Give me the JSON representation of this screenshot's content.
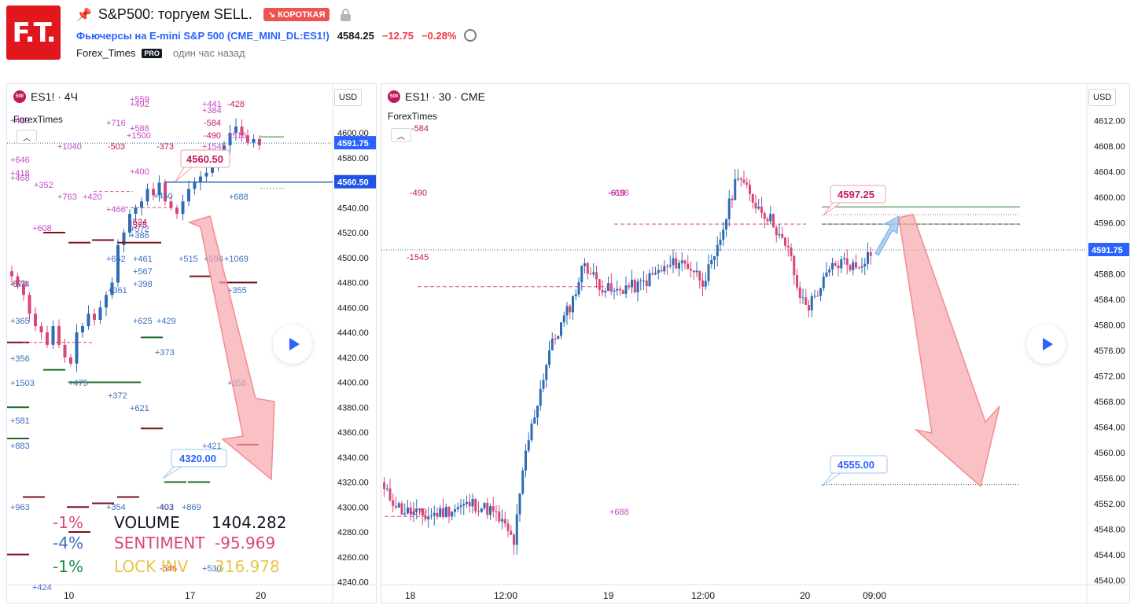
{
  "header": {
    "logo_text": "F.T.",
    "title": "S&P500: торгуем SELL.",
    "badge": "↘ КОРОТКАЯ",
    "instrument_link": "Фьючерсы на E-mini S&P 500",
    "instrument_code": "(CME_MINI_DL:ES1!)",
    "price": "4584.25",
    "change": "−12.75",
    "change_pct": "−0.28%",
    "author": "Forex_Times",
    "pro": "PRO",
    "published": "один час назад"
  },
  "left_chart": {
    "title": "ES1! · 4Ч",
    "author": "ForexTimes",
    "currency": "USD",
    "collapse_icon": "chevron-up-icon",
    "play_icon": "play-icon",
    "price_axis": [
      "4600.00",
      "4580.00",
      "4560.00",
      "4540.00",
      "4520.00",
      "4500.00",
      "4480.00",
      "4460.00",
      "4440.00",
      "4420.00",
      "4400.00",
      "4380.00",
      "4360.00",
      "4340.00",
      "4320.00",
      "4300.00",
      "4280.00",
      "4260.00",
      "4240.00"
    ],
    "last_price_label": "4591.75",
    "line_price_label": "4560.50",
    "entry_callout": "4560.50",
    "target_callout": "4320.00",
    "time_axis": [
      "10",
      "17",
      "20"
    ],
    "stats": {
      "row1_pct": "-1%",
      "row1_label": "VOLUME",
      "row1_value": "1404.282",
      "row2_pct": "-4%",
      "row2_label": "SENTIMENT",
      "row2_value": "-95.969",
      "row3_pct": "-1%",
      "row3_label": "LOCK INV",
      "row3_value": "316.978"
    },
    "indicator_labels": [
      "+489",
      "+646",
      "+418",
      "+468",
      "+352",
      "+763",
      "+420",
      "+608",
      "+466",
      "+1040",
      "-503",
      "-373",
      "+1545",
      "+716",
      "+588",
      "+1500",
      "+492",
      "+559",
      "+400",
      "+441",
      "+384",
      "-428",
      "-584",
      "-490",
      "+516",
      "+450",
      "-524",
      "+572",
      "+386",
      "+652",
      "+461",
      "+567",
      "+398",
      "+515",
      "+596",
      "+1069",
      "+688",
      "+574",
      "+365",
      "+356",
      "+1503",
      "+355",
      "+581",
      "+883",
      "+963",
      "+354",
      "-403",
      "+869",
      "+475",
      "+372",
      "+621",
      "+625",
      "+429",
      "+373",
      "+355",
      "+421",
      "-546",
      "+530",
      "+424",
      "-575",
      "+361",
      "-574"
    ]
  },
  "right_chart": {
    "title": "ES1! · 30 · CME",
    "author": "ForexTimes",
    "currency": "USD",
    "collapse_icon": "chevron-up-icon",
    "play_icon": "play-icon",
    "price_axis": [
      "4612.00",
      "4608.00",
      "4604.00",
      "4600.00",
      "4596.00",
      "4592.00",
      "4588.00",
      "4584.00",
      "4580.00",
      "4576.00",
      "4572.00",
      "4568.00",
      "4564.00",
      "4560.00",
      "4556.00",
      "4552.00",
      "4548.00",
      "4544.00",
      "4540.00"
    ],
    "last_price_label": "4591.75",
    "entry_callout": "4597.25",
    "target_callout": "4555.00",
    "time_axis": [
      "18",
      "12:00",
      "19",
      "12:00",
      "20",
      "09:00"
    ],
    "indicator_labels": [
      "-584",
      "-490",
      "-619",
      "-1545",
      "+688",
      "-579",
      "+688"
    ]
  },
  "colors": {
    "bull": "#2e6bb5",
    "bear": "#d9477a",
    "price_tag": "#2962ff",
    "arrow": "#f7a6ab",
    "magenta": "#c2185b",
    "blue_label": "#3b6fc0",
    "purple_label": "#c24bc9"
  }
}
